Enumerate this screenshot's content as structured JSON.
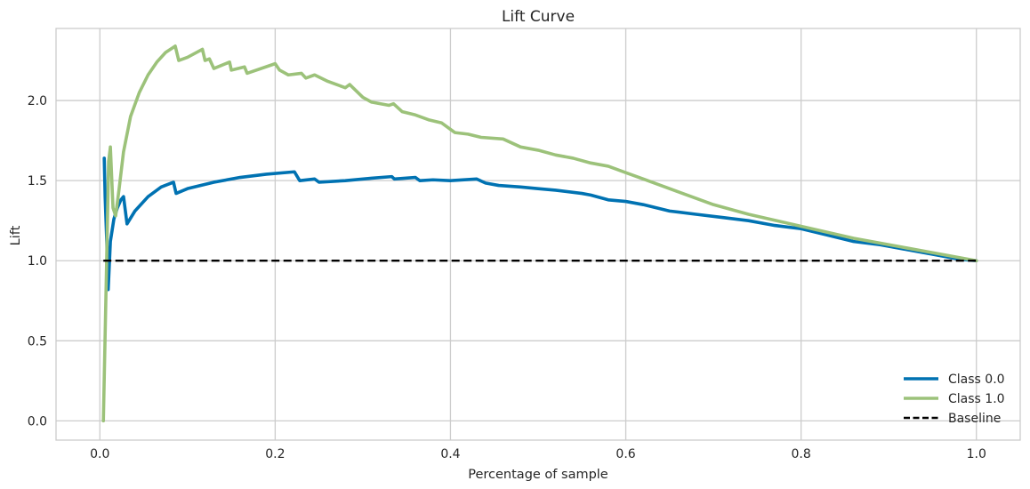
{
  "chart_data": {
    "type": "line",
    "title": "Lift Curve",
    "xlabel": "Percentage of sample",
    "ylabel": "Lift",
    "xlim": [
      -0.05,
      1.05
    ],
    "ylim": [
      -0.12,
      2.45
    ],
    "xticks": [
      0.0,
      0.2,
      0.4,
      0.6,
      0.8,
      1.0
    ],
    "xtick_labels": [
      "0.0",
      "0.2",
      "0.4",
      "0.6",
      "0.8",
      "1.0"
    ],
    "yticks": [
      0.0,
      0.5,
      1.0,
      1.5,
      2.0
    ],
    "ytick_labels": [
      "0.0",
      "0.5",
      "1.0",
      "1.5",
      "2.0"
    ],
    "grid": true,
    "legend_position": "lower-right",
    "series": [
      {
        "name": "Class 0.0",
        "color": "#0072b2",
        "style": "solid",
        "points": [
          [
            0.005,
            1.64
          ],
          [
            0.006,
            1.4
          ],
          [
            0.008,
            1.1
          ],
          [
            0.0095,
            0.82
          ],
          [
            0.012,
            1.12
          ],
          [
            0.016,
            1.26
          ],
          [
            0.02,
            1.33
          ],
          [
            0.024,
            1.38
          ],
          [
            0.027,
            1.4
          ],
          [
            0.031,
            1.23
          ],
          [
            0.04,
            1.31
          ],
          [
            0.055,
            1.4
          ],
          [
            0.07,
            1.46
          ],
          [
            0.084,
            1.49
          ],
          [
            0.087,
            1.42
          ],
          [
            0.1,
            1.45
          ],
          [
            0.13,
            1.49
          ],
          [
            0.16,
            1.52
          ],
          [
            0.19,
            1.54
          ],
          [
            0.222,
            1.555
          ],
          [
            0.228,
            1.5
          ],
          [
            0.245,
            1.51
          ],
          [
            0.25,
            1.49
          ],
          [
            0.28,
            1.5
          ],
          [
            0.31,
            1.515
          ],
          [
            0.333,
            1.525
          ],
          [
            0.336,
            1.51
          ],
          [
            0.36,
            1.52
          ],
          [
            0.365,
            1.5
          ],
          [
            0.38,
            1.505
          ],
          [
            0.4,
            1.5
          ],
          [
            0.43,
            1.51
          ],
          [
            0.44,
            1.485
          ],
          [
            0.455,
            1.47
          ],
          [
            0.48,
            1.46
          ],
          [
            0.5,
            1.45
          ],
          [
            0.52,
            1.44
          ],
          [
            0.55,
            1.42
          ],
          [
            0.56,
            1.41
          ],
          [
            0.58,
            1.38
          ],
          [
            0.6,
            1.37
          ],
          [
            0.62,
            1.35
          ],
          [
            0.65,
            1.31
          ],
          [
            0.68,
            1.29
          ],
          [
            0.71,
            1.27
          ],
          [
            0.74,
            1.25
          ],
          [
            0.77,
            1.22
          ],
          [
            0.8,
            1.2
          ],
          [
            0.83,
            1.16
          ],
          [
            0.86,
            1.12
          ],
          [
            0.89,
            1.1
          ],
          [
            0.92,
            1.07
          ],
          [
            0.95,
            1.04
          ],
          [
            0.98,
            1.01
          ],
          [
            1.0,
            1.0
          ]
        ]
      },
      {
        "name": "Class 1.0",
        "color": "#9cc27a",
        "style": "solid",
        "points": [
          [
            0.004,
            0.0
          ],
          [
            0.007,
            0.8
          ],
          [
            0.01,
            1.62
          ],
          [
            0.012,
            1.71
          ],
          [
            0.015,
            1.33
          ],
          [
            0.018,
            1.28
          ],
          [
            0.022,
            1.45
          ],
          [
            0.027,
            1.68
          ],
          [
            0.035,
            1.9
          ],
          [
            0.045,
            2.05
          ],
          [
            0.055,
            2.16
          ],
          [
            0.065,
            2.24
          ],
          [
            0.075,
            2.3
          ],
          [
            0.086,
            2.34
          ],
          [
            0.09,
            2.25
          ],
          [
            0.1,
            2.27
          ],
          [
            0.117,
            2.32
          ],
          [
            0.12,
            2.25
          ],
          [
            0.125,
            2.26
          ],
          [
            0.13,
            2.2
          ],
          [
            0.148,
            2.24
          ],
          [
            0.15,
            2.19
          ],
          [
            0.165,
            2.21
          ],
          [
            0.168,
            2.17
          ],
          [
            0.2,
            2.23
          ],
          [
            0.205,
            2.19
          ],
          [
            0.215,
            2.16
          ],
          [
            0.23,
            2.17
          ],
          [
            0.235,
            2.14
          ],
          [
            0.245,
            2.16
          ],
          [
            0.26,
            2.12
          ],
          [
            0.27,
            2.1
          ],
          [
            0.28,
            2.08
          ],
          [
            0.285,
            2.1
          ],
          [
            0.3,
            2.02
          ],
          [
            0.31,
            1.99
          ],
          [
            0.33,
            1.97
          ],
          [
            0.335,
            1.98
          ],
          [
            0.345,
            1.93
          ],
          [
            0.36,
            1.91
          ],
          [
            0.375,
            1.88
          ],
          [
            0.39,
            1.86
          ],
          [
            0.405,
            1.8
          ],
          [
            0.42,
            1.79
          ],
          [
            0.435,
            1.77
          ],
          [
            0.46,
            1.76
          ],
          [
            0.48,
            1.71
          ],
          [
            0.5,
            1.69
          ],
          [
            0.52,
            1.66
          ],
          [
            0.54,
            1.64
          ],
          [
            0.56,
            1.61
          ],
          [
            0.58,
            1.59
          ],
          [
            0.6,
            1.55
          ],
          [
            0.62,
            1.51
          ],
          [
            0.64,
            1.47
          ],
          [
            0.66,
            1.43
          ],
          [
            0.7,
            1.35
          ],
          [
            0.74,
            1.29
          ],
          [
            0.78,
            1.24
          ],
          [
            0.82,
            1.19
          ],
          [
            0.86,
            1.14
          ],
          [
            0.89,
            1.11
          ],
          [
            0.92,
            1.08
          ],
          [
            0.96,
            1.04
          ],
          [
            1.0,
            1.0
          ]
        ]
      },
      {
        "name": "Baseline",
        "color": "#000000",
        "style": "dashed",
        "points": [
          [
            0.004,
            1.0
          ],
          [
            1.0,
            1.0
          ]
        ]
      }
    ]
  }
}
